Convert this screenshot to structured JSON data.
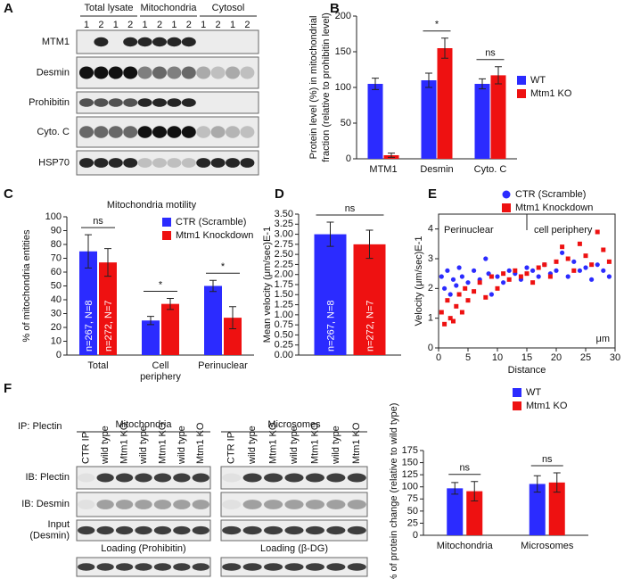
{
  "panel_labels": [
    "A",
    "B",
    "C",
    "D",
    "E",
    "F"
  ],
  "blot_a": {
    "groups": [
      "Total lysate",
      "Mitochondria",
      "Cytosol"
    ],
    "lanes": [
      "1",
      "2",
      "1",
      "2",
      "1",
      "2",
      "1",
      "2",
      "1",
      "2",
      "1",
      "2"
    ],
    "rows": [
      "MTM1",
      "Desmin",
      "Prohibitin",
      "Cyto. C",
      "HSP70"
    ]
  },
  "blot_f": {
    "ip": "IP: Plectin",
    "groups": [
      "Mitochondria",
      "Microsomes"
    ],
    "lanes": [
      "CTR IP",
      "wild type",
      "Mtm1 KO",
      "wild type",
      "Mtm1 KO",
      "wild type",
      "Mtm1 KO"
    ],
    "rows": [
      "IB: Plectin",
      "IB: Desmin",
      "Input (Desmin)"
    ],
    "loading": [
      "Loading (Prohibitin)",
      "Loading (β-DG)"
    ]
  },
  "chart_data": [
    {
      "type": "bar",
      "ylabel": [
        "Protein level (%) in mitochondrial",
        "fraction (relative to prohibitin level)"
      ],
      "ylim": [
        0,
        200
      ],
      "yticks": [
        0,
        50,
        100,
        150,
        200
      ],
      "categories": [
        "MTM1",
        "Desmin",
        "Cyto. C"
      ],
      "series": [
        {
          "name": "WT",
          "color": "#2b2bff",
          "values": [
            105,
            110,
            105
          ],
          "errors": [
            8,
            10,
            7
          ]
        },
        {
          "name": "Mtm1 KO",
          "color": "#ee1111",
          "values": [
            5,
            155,
            117
          ],
          "errors": [
            3,
            14,
            12
          ]
        }
      ],
      "annotations": [
        "*",
        "ns"
      ]
    },
    {
      "type": "bar",
      "title": "Mitochondria motility",
      "ylabel": [
        "% of mitochondria entities"
      ],
      "ylim": [
        0,
        100
      ],
      "yticks": [
        0,
        10,
        20,
        30,
        40,
        50,
        60,
        70,
        80,
        90,
        100
      ],
      "categories": [
        "Total",
        "Cell periphery",
        "Perinuclear"
      ],
      "series": [
        {
          "name": "CTR (Scramble)",
          "color": "#2b2bff",
          "values": [
            75,
            25,
            50
          ],
          "errors": [
            12,
            3,
            4
          ],
          "bar_label": "n=267, N=8"
        },
        {
          "name": "Mtm1 Knockdown",
          "color": "#ee1111",
          "values": [
            67,
            37,
            27
          ],
          "errors": [
            10,
            4,
            8
          ],
          "bar_label": "n=272, N=7"
        }
      ],
      "annotations": [
        "ns",
        "*",
        "*"
      ]
    },
    {
      "type": "bar",
      "ylabel": [
        "Mean velocity (μm/sec)E-1"
      ],
      "ylim": [
        0,
        3.5
      ],
      "yticks": [
        {
          "value": 0,
          "label": "0.00"
        },
        {
          "value": 0.25,
          "label": "0.25"
        },
        {
          "value": 0.5,
          "label": "0.50"
        },
        {
          "value": 0.75,
          "label": "0.75"
        },
        {
          "value": 1,
          "label": "1.00"
        },
        {
          "value": 1.25,
          "label": "1.25"
        },
        {
          "value": 1.5,
          "label": "1.50"
        },
        {
          "value": 1.75,
          "label": "1.75"
        },
        {
          "value": 2,
          "label": "2.00"
        },
        {
          "value": 2.25,
          "label": "2.25"
        },
        {
          "value": 2.5,
          "label": "2.50"
        },
        {
          "value": 2.75,
          "label": "2.75"
        },
        {
          "value": 3,
          "label": "3.00"
        },
        {
          "value": 3.25,
          "label": "3.25"
        },
        {
          "value": 3.5,
          "label": "3.50"
        }
      ],
      "categories": [
        null
      ],
      "series": [
        {
          "color": "#2b2bff",
          "values": [
            3.0
          ],
          "errors": [
            0.3
          ],
          "bar_label": "n=267, N=8"
        },
        {
          "color": "#ee1111",
          "values": [
            2.75
          ],
          "errors": [
            0.35
          ],
          "bar_label": "n=272, N=7"
        }
      ],
      "annotations": [
        "ns"
      ]
    },
    {
      "type": "scatter",
      "ylabel": [
        "Velocity (μm/sec)E-1"
      ],
      "xlabel": "Distance",
      "xunit": "μm",
      "xlim": [
        0,
        30
      ],
      "ylim": [
        0,
        4.5
      ],
      "xticks": [
        0,
        5,
        10,
        15,
        20,
        25,
        30
      ],
      "yticks": [
        0,
        1,
        2,
        3,
        4
      ],
      "series": [
        {
          "name": "CTR (Scramble)",
          "color": "#2b2bff",
          "marker": "circle",
          "x": [
            0.5,
            1,
            1.5,
            2,
            2.5,
            3,
            3.5,
            4,
            5,
            6,
            7,
            8,
            8.5,
            9,
            10,
            11,
            12,
            13,
            14,
            15,
            16,
            17,
            18,
            19,
            20,
            21,
            22,
            23,
            24,
            25,
            26,
            27,
            28,
            29
          ],
          "values": [
            2.4,
            2.0,
            2.6,
            1.8,
            2.3,
            2.1,
            2.7,
            2.4,
            2.2,
            2.6,
            2.3,
            3.0,
            2.5,
            1.8,
            2.4,
            2.2,
            2.6,
            2.5,
            2.3,
            2.7,
            2.6,
            2.4,
            2.8,
            2.5,
            2.6,
            3.2,
            2.4,
            2.9,
            2.6,
            2.7,
            2.3,
            2.8,
            2.6,
            2.4
          ]
        },
        {
          "name": "Mtm1 Knockdown",
          "color": "#ee1111",
          "marker": "square",
          "x": [
            0.5,
            1,
            1.5,
            2,
            2.5,
            3,
            3.5,
            4,
            4.5,
            5,
            6,
            7,
            8,
            9,
            10,
            11,
            12,
            13,
            14,
            15,
            16,
            17,
            18,
            19,
            20,
            21,
            22,
            23,
            24,
            25,
            26,
            27,
            28,
            29
          ],
          "values": [
            1.2,
            0.8,
            1.6,
            1.0,
            0.9,
            1.4,
            1.8,
            1.2,
            2.0,
            1.6,
            1.9,
            2.2,
            1.7,
            2.4,
            2.0,
            2.5,
            2.3,
            2.6,
            2.4,
            2.5,
            2.2,
            2.7,
            2.8,
            2.4,
            2.9,
            3.4,
            3.0,
            2.6,
            3.5,
            3.1,
            2.8,
            3.9,
            3.3,
            2.9
          ]
        }
      ],
      "annotations": [
        "Perinuclear",
        "cell periphery"
      ]
    },
    {
      "type": "bar",
      "ylabel": [
        "% of protein change (relative to wild type)"
      ],
      "ylim": [
        0,
        175
      ],
      "yticks": [
        0,
        25,
        50,
        75,
        100,
        125,
        150,
        175
      ],
      "categories": [
        "Mitochondria",
        "Microsomes"
      ],
      "series": [
        {
          "name": "WT",
          "color": "#2b2bff",
          "values": [
            97,
            106
          ],
          "errors": [
            12,
            17
          ]
        },
        {
          "name": "Mtm1 KO",
          "color": "#ee1111",
          "values": [
            91,
            109
          ],
          "errors": [
            20,
            20
          ]
        }
      ],
      "annotations": [
        "ns",
        "ns"
      ]
    }
  ]
}
